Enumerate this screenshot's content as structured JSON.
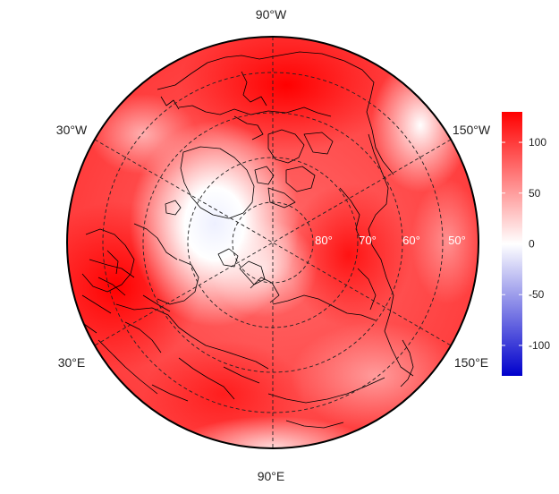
{
  "map": {
    "projection": "polar-stereographic-north",
    "longitude_labels": {
      "top": "90°W",
      "upper_left": "30°W",
      "upper_right": "150°W",
      "lower_left": "30°E",
      "lower_right": "150°E",
      "bottom": "90°E"
    },
    "latitude_labels": [
      "80°",
      "70°",
      "60°",
      "50°"
    ],
    "gridlines": {
      "latitudes": [
        80,
        70,
        60,
        50
      ],
      "meridian_step_deg": 30
    },
    "field_description_colors": {
      "high": "#ff0000",
      "mid": "#ffffff",
      "low": "#0000ff"
    }
  },
  "colorbar": {
    "min": -130,
    "max": 130,
    "ticks": [
      "100",
      "50",
      "0",
      "-50",
      "-100"
    ],
    "tick_values": [
      100,
      50,
      0,
      -50,
      -100
    ],
    "colors": {
      "top": "#ff0000",
      "middle": "#ffffff",
      "bottom": "#0000cc"
    }
  }
}
